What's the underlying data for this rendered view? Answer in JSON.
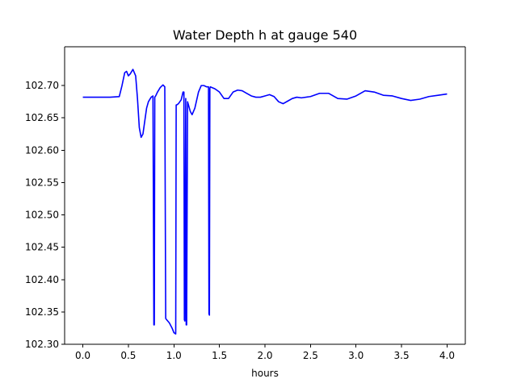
{
  "chart_data": {
    "type": "line",
    "title": "Water Depth h at gauge 540",
    "xlabel": "hours",
    "ylabel": "",
    "xlim": [
      -0.2,
      4.2
    ],
    "ylim": [
      102.3,
      102.76
    ],
    "x_ticks": [
      0.0,
      0.5,
      1.0,
      1.5,
      2.0,
      2.5,
      3.0,
      3.5,
      4.0
    ],
    "x_tick_labels": [
      "0.0",
      "0.5",
      "1.0",
      "1.5",
      "2.0",
      "2.5",
      "3.0",
      "3.5",
      "4.0"
    ],
    "y_ticks": [
      102.3,
      102.35,
      102.4,
      102.45,
      102.5,
      102.55,
      102.6,
      102.65,
      102.7
    ],
    "y_tick_labels": [
      "102.30",
      "102.35",
      "102.40",
      "102.45",
      "102.50",
      "102.55",
      "102.60",
      "102.65",
      "102.70"
    ],
    "grid": false,
    "series": [
      {
        "color": "#0000ff",
        "x": [
          0.0,
          0.1,
          0.2,
          0.3,
          0.4,
          0.43,
          0.46,
          0.48,
          0.5,
          0.52,
          0.55,
          0.58,
          0.6,
          0.62,
          0.64,
          0.66,
          0.68,
          0.7,
          0.72,
          0.75,
          0.77,
          0.78,
          0.785,
          0.79,
          0.8,
          0.82,
          0.85,
          0.88,
          0.9,
          0.91,
          0.92,
          0.95,
          0.98,
          1.0,
          1.02,
          1.025,
          1.03,
          1.05,
          1.08,
          1.1,
          1.11,
          1.115,
          1.12,
          1.13,
          1.135,
          1.14,
          1.15,
          1.18,
          1.2,
          1.23,
          1.27,
          1.3,
          1.33,
          1.36,
          1.38,
          1.385,
          1.39,
          1.395,
          1.4,
          1.45,
          1.5,
          1.55,
          1.6,
          1.65,
          1.7,
          1.75,
          1.8,
          1.85,
          1.9,
          1.95,
          2.0,
          2.05,
          2.1,
          2.15,
          2.2,
          2.25,
          2.3,
          2.35,
          2.4,
          2.5,
          2.6,
          2.7,
          2.8,
          2.9,
          3.0,
          3.1,
          3.2,
          3.3,
          3.4,
          3.5,
          3.6,
          3.7,
          3.8,
          3.9,
          4.0
        ],
        "y": [
          102.682,
          102.682,
          102.682,
          102.682,
          102.683,
          102.7,
          102.72,
          102.722,
          102.715,
          102.718,
          102.725,
          102.715,
          102.68,
          102.635,
          102.62,
          102.625,
          102.645,
          102.665,
          102.675,
          102.682,
          102.684,
          102.33,
          102.33,
          102.682,
          102.684,
          102.69,
          102.697,
          102.701,
          102.698,
          102.34,
          102.338,
          102.333,
          102.325,
          102.318,
          102.316,
          102.67,
          102.67,
          102.672,
          102.678,
          102.69,
          102.69,
          102.338,
          102.336,
          102.68,
          102.33,
          102.33,
          102.675,
          102.66,
          102.655,
          102.665,
          102.69,
          102.7,
          102.7,
          102.698,
          102.698,
          102.347,
          102.345,
          102.696,
          102.698,
          102.695,
          102.69,
          102.68,
          102.68,
          102.69,
          102.693,
          102.692,
          102.688,
          102.684,
          102.682,
          102.682,
          102.684,
          102.686,
          102.683,
          102.675,
          102.672,
          102.676,
          102.68,
          102.682,
          102.681,
          102.683,
          102.688,
          102.688,
          102.68,
          102.679,
          102.684,
          102.692,
          102.69,
          102.685,
          102.684,
          102.68,
          102.677,
          102.679,
          102.683,
          102.685,
          102.687
        ]
      }
    ]
  }
}
